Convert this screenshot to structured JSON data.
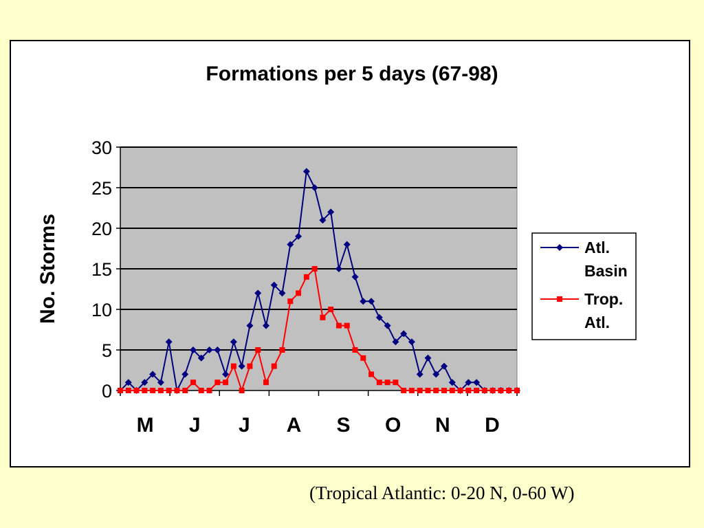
{
  "colors": {
    "background": "#FFFFCC",
    "plot_area": "#C0C0C0",
    "atl_basin": "#000080",
    "trop_atl": "#FF0000"
  },
  "footnote": "(Tropical Atlantic: 0-20 N, 0-60 W)",
  "chart_data": {
    "type": "line",
    "title": "Formations per 5 days (67-98)",
    "ylabel": "No. Storms",
    "xlabel": "",
    "ylim": [
      0,
      30
    ],
    "yticks": [
      0,
      5,
      10,
      15,
      20,
      25,
      30
    ],
    "grid": "horizontal",
    "legend_position": "right",
    "x": [
      1,
      2,
      3,
      4,
      5,
      6,
      7,
      8,
      9,
      10,
      11,
      12,
      13,
      14,
      15,
      16,
      17,
      18,
      19,
      20,
      21,
      22,
      23,
      24,
      25,
      26,
      27,
      28,
      29,
      30,
      31,
      32,
      33,
      34,
      35,
      36,
      37,
      38,
      39,
      40,
      41,
      42,
      43,
      44,
      45,
      46,
      47,
      48,
      49,
      50
    ],
    "categories": [
      "M",
      "J",
      "J",
      "A",
      "S",
      "O",
      "N",
      "D"
    ],
    "series": [
      {
        "name": "Atl. Basin",
        "legend_lines": [
          "Atl.",
          "Basin"
        ],
        "color": "#000080",
        "marker": "diamond",
        "values": [
          0,
          1,
          0,
          1,
          2,
          1,
          6,
          0,
          2,
          5,
          4,
          5,
          5,
          2,
          6,
          3,
          8,
          12,
          8,
          13,
          12,
          18,
          19,
          27,
          25,
          21,
          22,
          15,
          18,
          14,
          11,
          11,
          9,
          8,
          6,
          7,
          6,
          2,
          4,
          2,
          3,
          1,
          0,
          1,
          1,
          0,
          0,
          0,
          0,
          0
        ]
      },
      {
        "name": "Trop. Atl.",
        "legend_lines": [
          "Trop.",
          "Atl."
        ],
        "color": "#FF0000",
        "marker": "square",
        "values": [
          0,
          0,
          0,
          0,
          0,
          0,
          0,
          0,
          0,
          1,
          0,
          0,
          1,
          1,
          3,
          0,
          3,
          5,
          1,
          3,
          5,
          11,
          12,
          14,
          15,
          9,
          10,
          8,
          8,
          5,
          4,
          2,
          1,
          1,
          1,
          0,
          0,
          0,
          0,
          0,
          0,
          0,
          0,
          0,
          0,
          0,
          0,
          0,
          0,
          0
        ]
      }
    ]
  }
}
